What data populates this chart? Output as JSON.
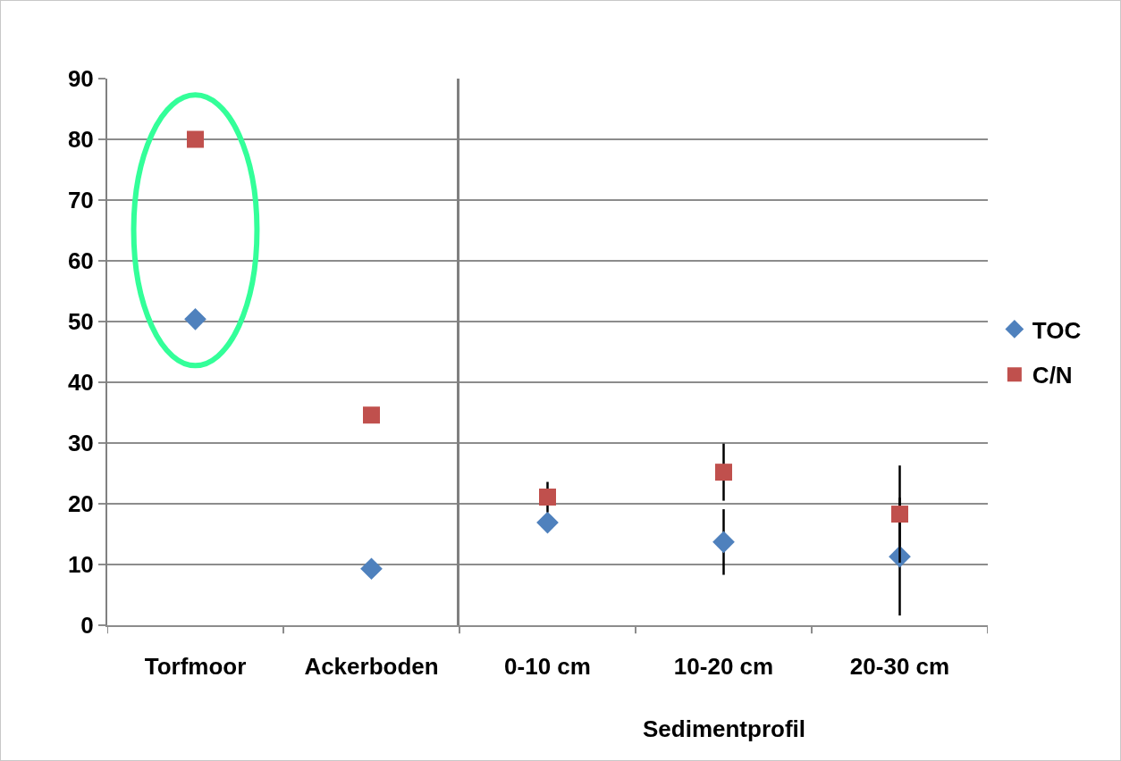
{
  "chart_data": [
    {
      "type": "scatter",
      "categories": [
        "Torfmoor",
        "Ackerboden"
      ],
      "series": [
        {
          "name": "TOC",
          "color": "#4f81bd",
          "marker": "diamond",
          "values": [
            50.4,
            9.3
          ]
        },
        {
          "name": "C/N",
          "color": "#c0504d",
          "marker": "square",
          "values": [
            80,
            34.6
          ]
        }
      ],
      "ylim": [
        0,
        90
      ],
      "yticks": [
        0,
        10,
        20,
        30,
        40,
        50,
        60,
        70,
        80,
        90
      ],
      "grid": "y",
      "legend": "right"
    },
    {
      "type": "scatter",
      "xlabel": "Sedimentprofil",
      "categories": [
        "0-10 cm",
        "10-20 cm",
        "20-30 cm"
      ],
      "series": [
        {
          "name": "TOC",
          "color": "#4f81bd",
          "marker": "diamond",
          "values": [
            16.9,
            13.7,
            11.3
          ],
          "errors": [
            null,
            5.4,
            9.7
          ]
        },
        {
          "name": "C/N",
          "color": "#c0504d",
          "marker": "square",
          "values": [
            21.1,
            25.2,
            18.3
          ],
          "errors": [
            2.5,
            4.7,
            8
          ]
        }
      ],
      "ylim": [
        0,
        90
      ],
      "yticks": [
        0,
        10,
        20,
        30,
        40,
        50,
        60,
        70,
        80,
        90
      ],
      "grid": "y",
      "legend": "right",
      "tick_labels": "x"
    }
  ]
}
